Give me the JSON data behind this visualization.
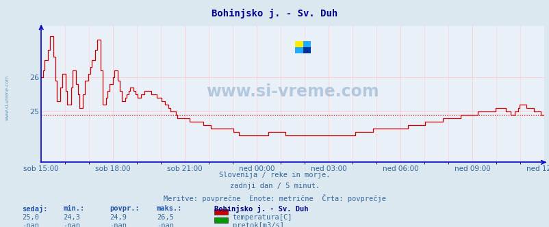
{
  "title": "Bohinjsko j. - Sv. Duh",
  "bg_color": "#dce8f0",
  "plot_bg_color": "#eaf0f8",
  "grid_color_v": "#ffcccc",
  "grid_color_h": "#ffcccc",
  "line_color": "#cc0000",
  "avg_line_color": "#cc0000",
  "avg_value": 24.9,
  "y_ticks": [
    25,
    26
  ],
  "y_min": 23.5,
  "y_max": 27.5,
  "x_labels": [
    "sob 15:00",
    "sob 18:00",
    "sob 21:00",
    "ned 00:00",
    "ned 03:00",
    "ned 06:00",
    "ned 09:00",
    "ned 12:00"
  ],
  "footer_line1": "Slovenija / reke in morje.",
  "footer_line2": "zadnji dan / 5 minut.",
  "footer_line3": "Meritve: povprečne  Enote: metrične  Črta: povprečje",
  "stat_headers": [
    "sedaj:",
    "min.:",
    "povpr.:",
    "maks.:"
  ],
  "stat_values_temp": [
    "25,0",
    "24,3",
    "24,9",
    "26,5"
  ],
  "stat_values_flow": [
    "-nan",
    "-nan",
    "-nan",
    "-nan"
  ],
  "station_name": "Bohinjsko j. - Sv. Duh",
  "legend_temp": "temperatura[C]",
  "legend_flow": "pretok[m3/s]",
  "legend_temp_color": "#cc0000",
  "legend_flow_color": "#009900",
  "watermark": "www.si-vreme.com",
  "watermark_color": "#4477aa",
  "left_label": "www.si-vreme.com",
  "axis_color": "#0000cc",
  "label_color": "#336699",
  "header_color": "#2255aa",
  "title_color": "#000088"
}
